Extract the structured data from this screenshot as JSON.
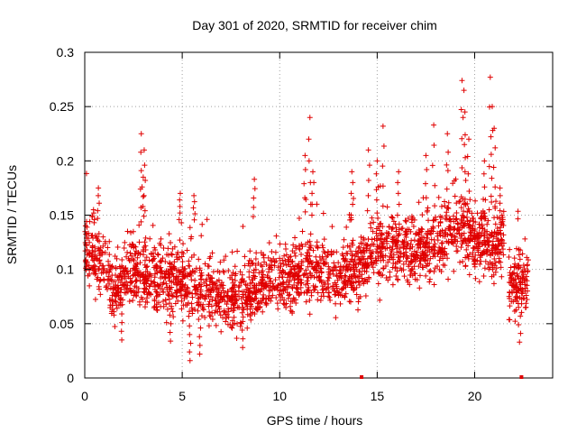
{
  "chart_data": {
    "type": "scatter",
    "title": "Day 301 of 2020, SRMTID for receiver chim",
    "xlabel": "GPS time / hours",
    "ylabel": "SRMTID / TECUs",
    "xlim": [
      0,
      24
    ],
    "ylim": [
      0,
      0.3
    ],
    "xticks": [
      0,
      5,
      10,
      15,
      20
    ],
    "xtick_labels": [
      "0",
      "5",
      "10",
      "15",
      "20"
    ],
    "yticks": [
      0,
      0.05,
      0.1,
      0.15,
      0.2,
      0.25,
      0.3
    ],
    "ytick_labels": [
      "0",
      "0.05",
      "0.1",
      "0.15",
      "0.2",
      "0.25",
      "0.3"
    ],
    "grid": true,
    "marker": "+",
    "color": "#e00000",
    "gap_markers_x": [
      14.2,
      22.4
    ],
    "series": [
      {
        "name": "SRMTID",
        "segments": [
          {
            "x": [
              0,
              0.25,
              0.5,
              0.75,
              1.0,
              1.25,
              1.5,
              1.75,
              2.0,
              2.25,
              2.5,
              2.75,
              3.0,
              3.25,
              3.5,
              3.75,
              4.0,
              4.25,
              4.5,
              4.75,
              5.0,
              5.25,
              5.5,
              5.75,
              6.0,
              6.25,
              6.5,
              6.75,
              7.0,
              7.25,
              7.5,
              7.75,
              8.0,
              8.25,
              8.5,
              8.75,
              9.0,
              9.25,
              9.5,
              9.75,
              10.0,
              10.25,
              10.5,
              10.75,
              11.0,
              11.25,
              11.5,
              11.75,
              12.0,
              12.25,
              12.5,
              12.75,
              13.0,
              13.25,
              13.5,
              13.75,
              14.0,
              14.25,
              14.5,
              14.75,
              15.0,
              15.25,
              15.5,
              15.75,
              16.0,
              16.25,
              16.5,
              16.75,
              17.0,
              17.25,
              17.5,
              17.75,
              18.0,
              18.25,
              18.5,
              18.75,
              19.0,
              19.25,
              19.5,
              19.75,
              20.0,
              20.25,
              20.5,
              20.75,
              21.0,
              21.25,
              21.5
            ],
            "center": [
              0.115,
              0.112,
              0.11,
              0.108,
              0.1,
              0.085,
              0.08,
              0.085,
              0.09,
              0.095,
              0.1,
              0.102,
              0.1,
              0.097,
              0.095,
              0.093,
              0.09,
              0.09,
              0.092,
              0.093,
              0.09,
              0.085,
              0.08,
              0.078,
              0.08,
              0.082,
              0.078,
              0.075,
              0.072,
              0.07,
              0.07,
              0.072,
              0.075,
              0.078,
              0.08,
              0.082,
              0.085,
              0.088,
              0.09,
              0.092,
              0.09,
              0.088,
              0.088,
              0.09,
              0.095,
              0.097,
              0.1,
              0.1,
              0.098,
              0.097,
              0.095,
              0.092,
              0.09,
              0.092,
              0.095,
              0.097,
              0.1,
              0.105,
              0.11,
              0.113,
              0.115,
              0.117,
              0.118,
              0.118,
              0.118,
              0.118,
              0.117,
              0.116,
              0.115,
              0.116,
              0.118,
              0.12,
              0.123,
              0.126,
              0.13,
              0.133,
              0.135,
              0.135,
              0.134,
              0.132,
              0.13,
              0.128,
              0.125,
              0.122,
              0.12,
              0.122,
              0.125
            ]
          },
          {
            "x": [
              21.75,
              22.0,
              22.25,
              22.5,
              22.75
            ],
            "center": [
              0.085,
              0.085,
              0.087,
              0.09,
              0.09
            ]
          }
        ],
        "spread_min": 0.015,
        "spread_max": 0.278,
        "peaks": [
          {
            "x": 0.45,
            "y": 0.155
          },
          {
            "x": 0.7,
            "y": 0.175
          },
          {
            "x": 2.9,
            "y": 0.225
          },
          {
            "x": 3.05,
            "y": 0.21
          },
          {
            "x": 3.0,
            "y": 0.185
          },
          {
            "x": 4.9,
            "y": 0.17
          },
          {
            "x": 5.6,
            "y": 0.168
          },
          {
            "x": 8.7,
            "y": 0.183
          },
          {
            "x": 11.55,
            "y": 0.24
          },
          {
            "x": 11.3,
            "y": 0.205
          },
          {
            "x": 11.7,
            "y": 0.19
          },
          {
            "x": 13.7,
            "y": 0.19
          },
          {
            "x": 14.55,
            "y": 0.21
          },
          {
            "x": 15.3,
            "y": 0.232
          },
          {
            "x": 15.0,
            "y": 0.2
          },
          {
            "x": 16.1,
            "y": 0.19
          },
          {
            "x": 17.5,
            "y": 0.205
          },
          {
            "x": 17.9,
            "y": 0.233
          },
          {
            "x": 18.6,
            "y": 0.225
          },
          {
            "x": 19.35,
            "y": 0.274
          },
          {
            "x": 19.45,
            "y": 0.265
          },
          {
            "x": 19.5,
            "y": 0.245
          },
          {
            "x": 19.7,
            "y": 0.22
          },
          {
            "x": 20.8,
            "y": 0.277
          },
          {
            "x": 20.9,
            "y": 0.25
          },
          {
            "x": 21.0,
            "y": 0.23
          },
          {
            "x": 20.5,
            "y": 0.2
          },
          {
            "x": 21.3,
            "y": 0.175
          },
          {
            "x": 21.4,
            "y": 0.15
          },
          {
            "x": 5.4,
            "y": 0.016
          },
          {
            "x": 5.9,
            "y": 0.022
          },
          {
            "x": 8.1,
            "y": 0.028
          },
          {
            "x": 4.4,
            "y": 0.034
          },
          {
            "x": 1.9,
            "y": 0.035
          },
          {
            "x": 22.3,
            "y": 0.033
          }
        ]
      }
    ]
  }
}
